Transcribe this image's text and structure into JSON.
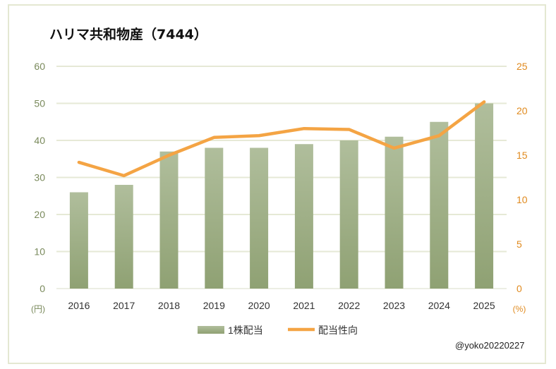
{
  "chart_data": {
    "type": "bar+line",
    "title": "ハリマ共和物産（7444）",
    "categories": [
      "2016",
      "2017",
      "2018",
      "2019",
      "2020",
      "2021",
      "2022",
      "2023",
      "2024",
      "2025"
    ],
    "series": [
      {
        "name": "1株配当",
        "type": "bar",
        "axis": "left",
        "values": [
          26,
          28,
          37,
          38,
          38,
          39,
          40,
          41,
          45,
          50
        ],
        "color": "#a9b992"
      },
      {
        "name": "配当性向",
        "type": "line",
        "axis": "right",
        "values": [
          14.2,
          12.7,
          15.0,
          17.0,
          17.2,
          18.0,
          17.9,
          15.8,
          17.2,
          21.0
        ],
        "color": "#f4a444"
      }
    ],
    "y_left": {
      "unit_label": "(円)",
      "range": [
        0,
        60
      ],
      "ticks": [
        "0",
        "10",
        "20",
        "30",
        "40",
        "50",
        "60"
      ],
      "color": "#7a8a5c"
    },
    "y_right": {
      "unit_label": "(%)",
      "range": [
        0,
        25
      ],
      "ticks": [
        "0",
        "5",
        "10",
        "15",
        "20",
        "25"
      ],
      "color": "#e08a1e"
    },
    "grid": true,
    "legend": "bottom"
  },
  "credit": "@yoko20220227"
}
